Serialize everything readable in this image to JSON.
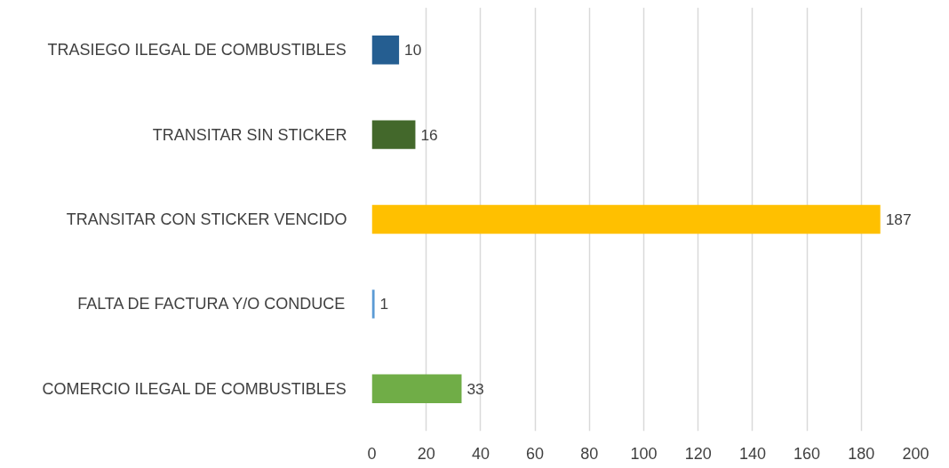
{
  "chart_data": {
    "type": "bar",
    "orientation": "horizontal",
    "categories": [
      "TRASIEGO ILEGAL DE COMBUSTIBLES",
      "TRANSITAR SIN STICKER",
      "TRANSITAR CON STICKER VENCIDO",
      "FALTA DE FACTURA Y/O CONDUCE",
      "COMERCIO ILEGAL DE COMBUSTIBLES"
    ],
    "values": [
      10,
      16,
      187,
      1,
      33
    ],
    "colors": [
      "#255e91",
      "#43682b",
      "#ffc000",
      "#5b9bd5",
      "#70ad47"
    ],
    "xlim": [
      0,
      200
    ],
    "xticks": [
      0,
      20,
      40,
      60,
      80,
      100,
      120,
      140,
      160,
      180,
      200
    ],
    "grid": "x",
    "data_labels": true
  }
}
